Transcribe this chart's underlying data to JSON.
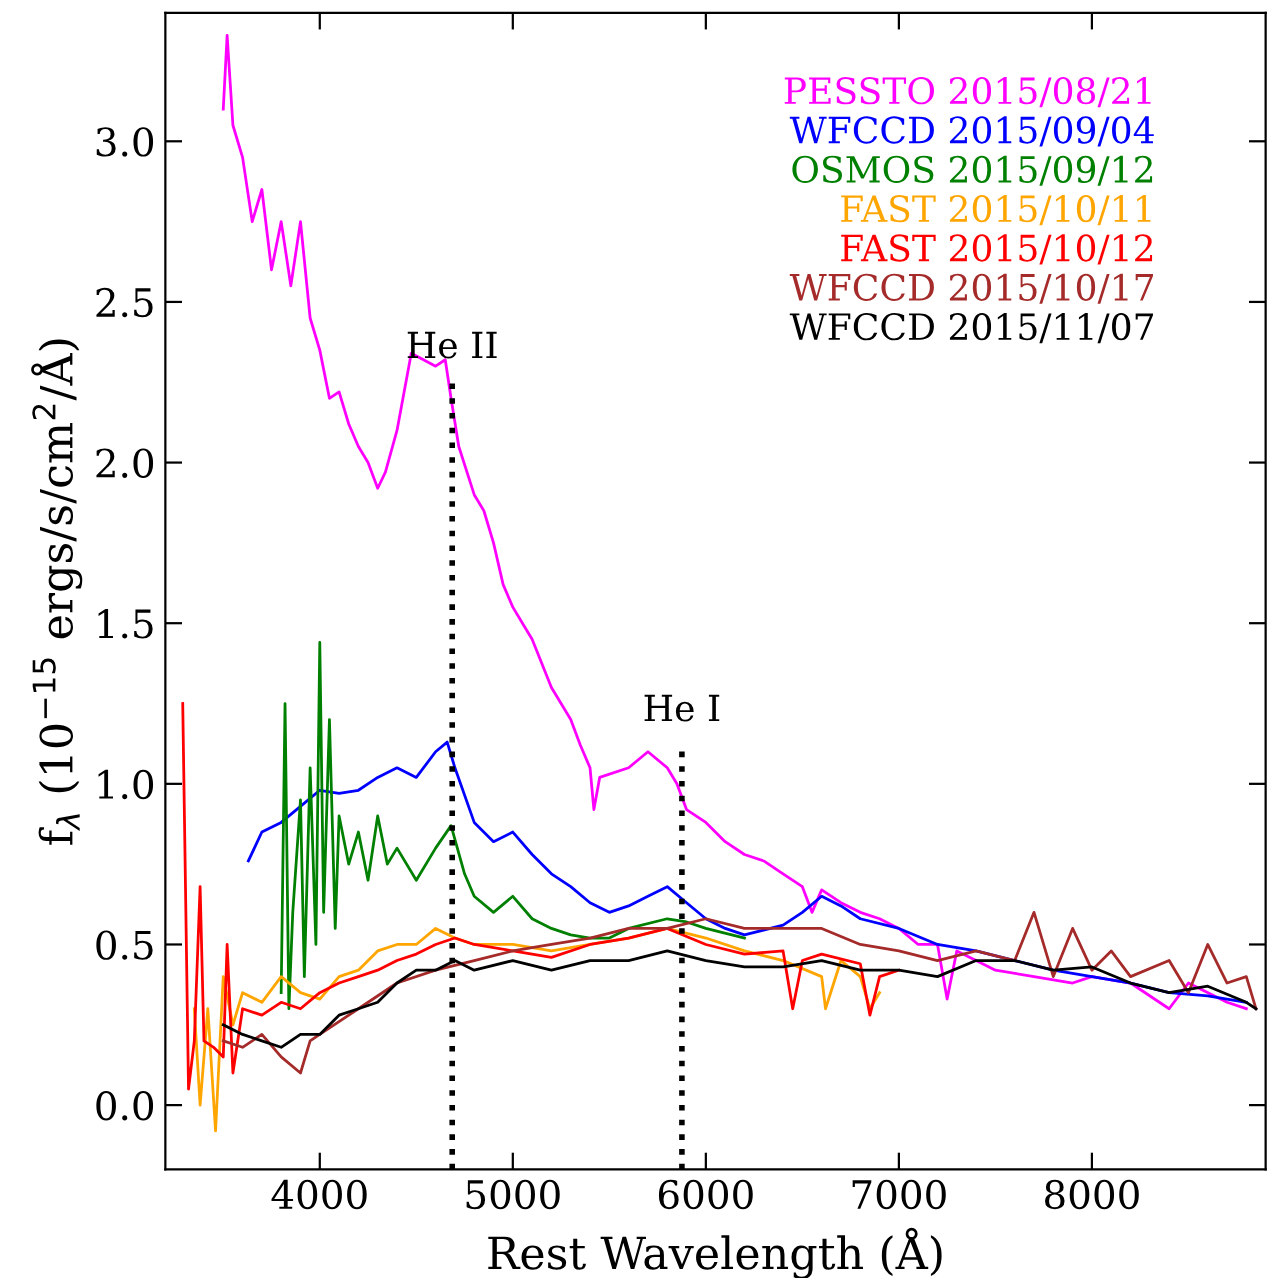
{
  "chart_data": {
    "type": "line",
    "xlabel": "Rest Wavelength (Å)",
    "ylabel": "f$_{λ}$ (10$^{−15}$ ergs/s/cm$^{2}$/Å)",
    "xlim": [
      3200,
      8900
    ],
    "ylim": [
      -0.2,
      3.4
    ],
    "xticks": [
      4000,
      5000,
      6000,
      7000,
      8000
    ],
    "yticks": [
      {
        "value": 0,
        "label": "0.0"
      },
      {
        "value": 0.5,
        "label": "0.5"
      },
      {
        "value": 1,
        "label": "1.0"
      },
      {
        "value": 1.5,
        "label": "1.5"
      },
      {
        "value": 2,
        "label": "2.0"
      },
      {
        "value": 2.5,
        "label": "2.5"
      },
      {
        "value": 3,
        "label": "3.0"
      }
    ],
    "grid": false,
    "legend": "top right",
    "line_style": "solid",
    "marker": "none",
    "ref_lines": [
      {
        "axis": "x",
        "value": 4686,
        "color": "#000000",
        "line_style": "dotted"
      },
      {
        "axis": "x",
        "value": 5876,
        "color": "#000000",
        "line_style": "dotted"
      }
    ],
    "annotations": [
      {
        "text": "He II",
        "x": 4686,
        "y": 2.25
      },
      {
        "text": "He I",
        "x": 5876,
        "y": 1.12
      }
    ],
    "series": [
      {
        "name": "PESSTO 2015/08/21",
        "color": "#ff00ff",
        "x": [
          3500,
          3520,
          3550,
          3600,
          3650,
          3700,
          3750,
          3800,
          3850,
          3900,
          3950,
          4000,
          4050,
          4100,
          4150,
          4200,
          4250,
          4300,
          4340,
          4400,
          4474,
          4600,
          4650,
          4680,
          4720,
          4800,
          4850,
          4900,
          4950,
          5000,
          5050,
          5100,
          5200,
          5300,
          5350,
          5400,
          5420,
          5450,
          5600,
          5700,
          5800,
          5850,
          5900,
          6000,
          6100,
          6200,
          6300,
          6400,
          6500,
          6550,
          6600,
          6700,
          6800,
          6900,
          7000,
          7100,
          7200,
          7250,
          7300,
          7400,
          7500,
          7700,
          7900,
          8000,
          8200,
          8400,
          8500,
          8700,
          8800
        ],
        "values": [
          3.1,
          3.33,
          3.05,
          2.95,
          2.75,
          2.85,
          2.6,
          2.75,
          2.55,
          2.75,
          2.45,
          2.35,
          2.2,
          2.22,
          2.12,
          2.05,
          2.0,
          1.92,
          1.97,
          2.1,
          2.34,
          2.3,
          2.32,
          2.2,
          2.05,
          1.9,
          1.85,
          1.75,
          1.62,
          1.55,
          1.5,
          1.45,
          1.3,
          1.2,
          1.12,
          1.05,
          0.92,
          1.02,
          1.05,
          1.1,
          1.05,
          1.0,
          0.92,
          0.88,
          0.82,
          0.78,
          0.76,
          0.72,
          0.68,
          0.6,
          0.67,
          0.63,
          0.6,
          0.58,
          0.55,
          0.5,
          0.5,
          0.33,
          0.48,
          0.45,
          0.42,
          0.4,
          0.38,
          0.4,
          0.38,
          0.3,
          0.38,
          0.32,
          0.3
        ]
      },
      {
        "name": "WFCCD 2015/09/04",
        "color": "#0000ff",
        "x": [
          3630,
          3700,
          3800,
          3900,
          4000,
          4100,
          4200,
          4300,
          4400,
          4500,
          4600,
          4660,
          4700,
          4800,
          4900,
          5000,
          5100,
          5200,
          5300,
          5400,
          5500,
          5600,
          5700,
          5800,
          5900,
          6000,
          6100,
          6200,
          6400,
          6500,
          6600,
          6700,
          6800,
          7000,
          7200,
          7400,
          7600,
          7800,
          8000,
          8200,
          8400,
          8600,
          8800
        ],
        "values": [
          0.76,
          0.85,
          0.88,
          0.93,
          0.98,
          0.97,
          0.98,
          1.02,
          1.05,
          1.02,
          1.1,
          1.13,
          1.05,
          0.88,
          0.82,
          0.85,
          0.78,
          0.72,
          0.68,
          0.63,
          0.6,
          0.62,
          0.65,
          0.68,
          0.63,
          0.58,
          0.55,
          0.53,
          0.56,
          0.6,
          0.65,
          0.62,
          0.58,
          0.55,
          0.5,
          0.48,
          0.45,
          0.42,
          0.4,
          0.38,
          0.35,
          0.34,
          0.32
        ]
      },
      {
        "name": "OSMOS 2015/09/12",
        "color": "#008000",
        "x": [
          3800,
          3820,
          3840,
          3860,
          3900,
          3920,
          3950,
          3980,
          4000,
          4020,
          4050,
          4080,
          4100,
          4150,
          4200,
          4250,
          4300,
          4350,
          4400,
          4500,
          4600,
          4680,
          4750,
          4800,
          4900,
          5000,
          5100,
          5200,
          5300,
          5400,
          5500,
          5600,
          5800,
          5900,
          6000,
          6200
        ],
        "values": [
          0.35,
          1.25,
          0.3,
          0.6,
          0.95,
          0.4,
          1.05,
          0.5,
          1.44,
          0.6,
          1.2,
          0.55,
          0.9,
          0.75,
          0.85,
          0.7,
          0.9,
          0.75,
          0.8,
          0.7,
          0.8,
          0.87,
          0.72,
          0.65,
          0.6,
          0.65,
          0.58,
          0.55,
          0.53,
          0.52,
          0.52,
          0.55,
          0.58,
          0.57,
          0.55,
          0.52
        ]
      },
      {
        "name": "FAST 2015/10/11",
        "color": "#ffa500",
        "x": [
          3350,
          3380,
          3420,
          3460,
          3500,
          3550,
          3600,
          3700,
          3800,
          3900,
          4000,
          4100,
          4200,
          4300,
          4400,
          4500,
          4600,
          4700,
          4800,
          5000,
          5200,
          5400,
          5600,
          5800,
          6000,
          6200,
          6400,
          6600,
          6620,
          6700,
          6800,
          6850,
          6900
        ],
        "values": [
          0.3,
          0.0,
          0.3,
          -0.08,
          0.4,
          0.25,
          0.35,
          0.32,
          0.4,
          0.35,
          0.33,
          0.4,
          0.42,
          0.48,
          0.5,
          0.5,
          0.55,
          0.52,
          0.5,
          0.5,
          0.48,
          0.5,
          0.52,
          0.55,
          0.52,
          0.48,
          0.45,
          0.4,
          0.3,
          0.45,
          0.4,
          0.3,
          0.35
        ]
      },
      {
        "name": "FAST 2015/10/12",
        "color": "#ff0000",
        "x": [
          3290,
          3320,
          3350,
          3380,
          3400,
          3450,
          3500,
          3520,
          3550,
          3600,
          3700,
          3800,
          3900,
          4000,
          4100,
          4200,
          4300,
          4400,
          4500,
          4600,
          4700,
          4800,
          5000,
          5200,
          5400,
          5600,
          5800,
          6000,
          6200,
          6400,
          6450,
          6500,
          6600,
          6800,
          6850,
          6900,
          7000
        ],
        "values": [
          1.25,
          0.05,
          0.2,
          0.68,
          0.2,
          0.18,
          0.15,
          0.5,
          0.1,
          0.3,
          0.28,
          0.32,
          0.3,
          0.35,
          0.38,
          0.4,
          0.42,
          0.45,
          0.47,
          0.5,
          0.52,
          0.5,
          0.48,
          0.46,
          0.5,
          0.52,
          0.55,
          0.5,
          0.47,
          0.48,
          0.3,
          0.45,
          0.47,
          0.44,
          0.28,
          0.4,
          0.42
        ]
      },
      {
        "name": "WFCCD 2015/10/17",
        "color": "#a52a2a",
        "x": [
          3500,
          3600,
          3700,
          3800,
          3900,
          3950,
          4000,
          4200,
          4400,
          4600,
          4800,
          5000,
          5200,
          5400,
          5600,
          5800,
          6000,
          6200,
          6400,
          6600,
          6800,
          7000,
          7200,
          7400,
          7600,
          7700,
          7800,
          7900,
          8000,
          8100,
          8200,
          8400,
          8500,
          8600,
          8700,
          8800,
          8850
        ],
        "values": [
          0.2,
          0.18,
          0.22,
          0.15,
          0.1,
          0.2,
          0.22,
          0.3,
          0.38,
          0.42,
          0.45,
          0.48,
          0.5,
          0.52,
          0.55,
          0.55,
          0.58,
          0.55,
          0.55,
          0.55,
          0.5,
          0.48,
          0.45,
          0.48,
          0.45,
          0.6,
          0.4,
          0.55,
          0.42,
          0.48,
          0.4,
          0.45,
          0.35,
          0.5,
          0.38,
          0.4,
          0.3
        ]
      },
      {
        "name": "WFCCD 2015/11/07",
        "color": "#000000",
        "x": [
          3500,
          3600,
          3700,
          3800,
          3900,
          4000,
          4100,
          4200,
          4300,
          4400,
          4500,
          4600,
          4700,
          4800,
          5000,
          5200,
          5400,
          5600,
          5800,
          6000,
          6200,
          6400,
          6600,
          6800,
          7000,
          7200,
          7400,
          7600,
          7800,
          8000,
          8200,
          8400,
          8600,
          8800,
          8850
        ],
        "values": [
          0.25,
          0.22,
          0.2,
          0.18,
          0.22,
          0.22,
          0.28,
          0.3,
          0.32,
          0.38,
          0.42,
          0.42,
          0.45,
          0.42,
          0.45,
          0.42,
          0.45,
          0.45,
          0.48,
          0.45,
          0.43,
          0.43,
          0.45,
          0.42,
          0.42,
          0.4,
          0.45,
          0.45,
          0.42,
          0.43,
          0.38,
          0.35,
          0.37,
          0.32,
          0.3
        ]
      }
    ]
  }
}
